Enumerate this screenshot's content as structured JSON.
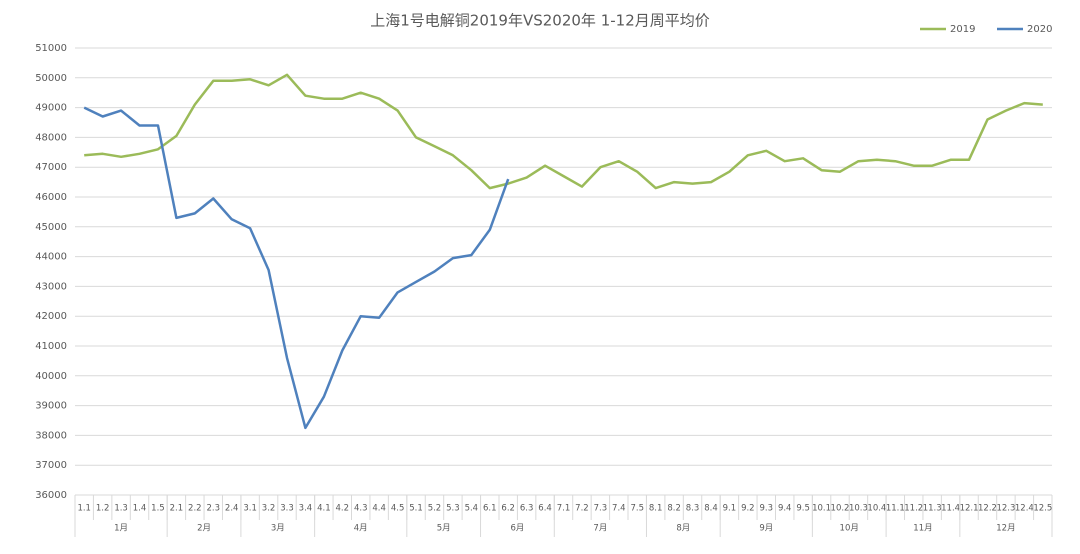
{
  "chart_data": {
    "type": "line",
    "title": "上海1号电解铜2019年VS2020年  1-12月周平均价",
    "categories": [
      "1.1",
      "1.2",
      "1.3",
      "1.4",
      "1.5",
      "2.1",
      "2.2",
      "2.3",
      "2.4",
      "3.1",
      "3.2",
      "3.3",
      "3.4",
      "4.1",
      "4.2",
      "4.3",
      "4.4",
      "4.5",
      "5.1",
      "5.2",
      "5.3",
      "5.4",
      "6.1",
      "6.2",
      "6.3",
      "6.4",
      "7.1",
      "7.2",
      "7.3",
      "7.4",
      "7.5",
      "8.1",
      "8.2",
      "8.3",
      "8.4",
      "9.1",
      "9.2",
      "9.3",
      "9.4",
      "9.5",
      "10.1",
      "10.2",
      "10.3",
      "10.4",
      "11.1",
      "11.2",
      "11.3",
      "11.4",
      "12.1",
      "12.2",
      "12.3",
      "12.4",
      "12.5"
    ],
    "groups": [
      {
        "label": "1月",
        "count": 5
      },
      {
        "label": "2月",
        "count": 4
      },
      {
        "label": "3月",
        "count": 4
      },
      {
        "label": "4月",
        "count": 5
      },
      {
        "label": "5月",
        "count": 4
      },
      {
        "label": "6月",
        "count": 4
      },
      {
        "label": "7月",
        "count": 5
      },
      {
        "label": "8月",
        "count": 4
      },
      {
        "label": "9月",
        "count": 5
      },
      {
        "label": "10月",
        "count": 4
      },
      {
        "label": "11月",
        "count": 4
      },
      {
        "label": "12月",
        "count": 5
      }
    ],
    "series": [
      {
        "name": "2019",
        "color": "#9bbb59",
        "values": [
          47400,
          47450,
          47350,
          47450,
          47600,
          48050,
          49100,
          49900,
          49900,
          49950,
          49750,
          50100,
          49400,
          49300,
          49300,
          49500,
          49300,
          48900,
          48000,
          47700,
          47400,
          46900,
          46300,
          46450,
          46650,
          47050,
          46700,
          46350,
          47000,
          47200,
          46850,
          46300,
          46500,
          46450,
          46500,
          46850,
          47400,
          47550,
          47200,
          47300,
          46900,
          46850,
          47200,
          47250,
          47200,
          47050,
          47050,
          47250,
          47250,
          48600,
          48900,
          49150,
          49100
        ]
      },
      {
        "name": "2020",
        "color": "#4f81bd",
        "values": [
          49000,
          48700,
          48900,
          48400,
          48400,
          45300,
          45450,
          45950,
          45250,
          44950,
          43550,
          40600,
          38250,
          39300,
          40850,
          42000,
          41950,
          42800,
          43150,
          43500,
          43950,
          44050,
          44900,
          46600,
          null,
          null,
          null,
          null,
          null,
          null,
          null,
          null,
          null,
          null,
          null,
          null,
          null,
          null,
          null,
          null,
          null,
          null,
          null,
          null,
          null,
          null,
          null,
          null,
          null,
          null,
          null,
          null,
          null
        ]
      }
    ],
    "ylim": [
      36000,
      51000
    ],
    "yticks": [
      36000,
      37000,
      38000,
      39000,
      40000,
      41000,
      42000,
      43000,
      44000,
      45000,
      46000,
      47000,
      48000,
      49000,
      50000,
      51000
    ],
    "grid": true,
    "legend": "top-right"
  }
}
